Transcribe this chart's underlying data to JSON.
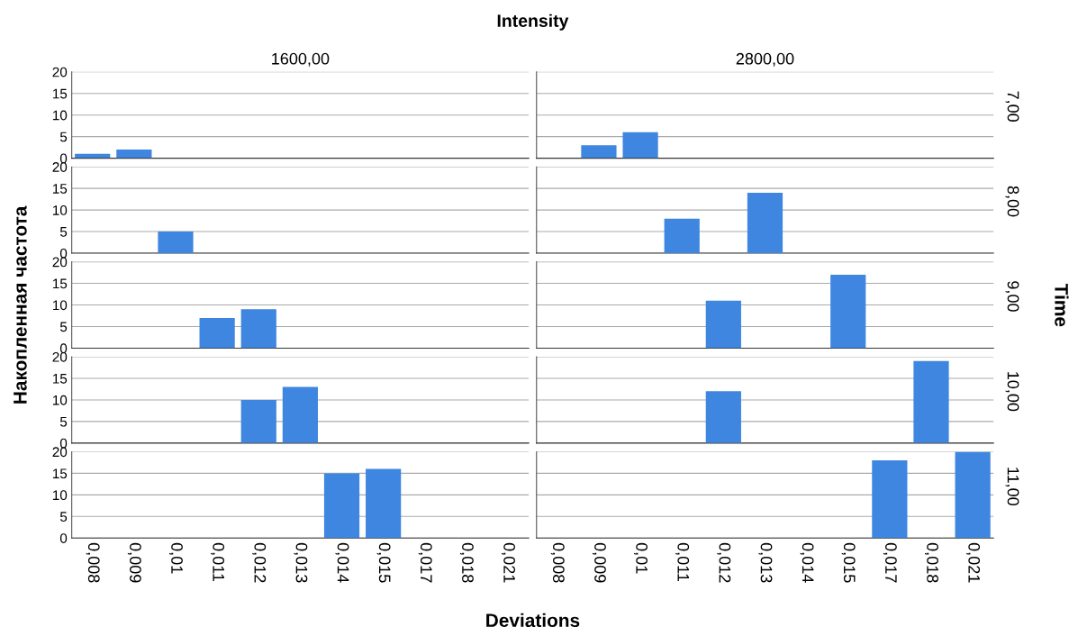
{
  "chart_data": [
    {
      "type": "bar",
      "title": "1600,00",
      "annotations": [
        "Intensity"
      ],
      "ylabel": "Накопленная частота",
      "categories": [
        "0,008",
        "0,009",
        "0,01",
        "0,011",
        "0,012",
        "0,013",
        "0,014",
        "0,015",
        "0,017",
        "0,018",
        "0,021"
      ],
      "values": [
        1,
        2,
        null,
        null,
        null,
        null,
        null,
        null,
        null,
        null,
        null
      ],
      "color": "#3e86e0",
      "ylim": [
        0,
        20
      ],
      "yticks": [
        0,
        5,
        10,
        15,
        20
      ],
      "grid": "y",
      "tick_labels": "y"
    },
    {
      "type": "bar",
      "title": "2800,00",
      "annotations": [
        "7,00"
      ],
      "y2label": "Time",
      "categories": [
        "0,008",
        "0,009",
        "0,01",
        "0,011",
        "0,012",
        "0,013",
        "0,014",
        "0,015",
        "0,017",
        "0,018",
        "0,021"
      ],
      "values": [
        null,
        3,
        6,
        null,
        null,
        null,
        null,
        null,
        null,
        null,
        null
      ],
      "color": "#3e86e0",
      "ylim": [
        0,
        20
      ],
      "yticks": [
        0,
        5,
        10,
        15,
        20
      ],
      "grid": "y",
      "tick_labels": false
    },
    {
      "type": "bar",
      "categories": [
        "0,008",
        "0,009",
        "0,01",
        "0,011",
        "0,012",
        "0,013",
        "0,014",
        "0,015",
        "0,017",
        "0,018",
        "0,021"
      ],
      "values": [
        null,
        null,
        5,
        null,
        null,
        null,
        null,
        null,
        null,
        null,
        null
      ],
      "color": "#3e86e0",
      "ylim": [
        0,
        20
      ],
      "yticks": [
        0,
        5,
        10,
        15,
        20
      ],
      "grid": "y",
      "tick_labels": "y"
    },
    {
      "type": "bar",
      "annotations": [
        "8,00"
      ],
      "categories": [
        "0,008",
        "0,009",
        "0,01",
        "0,011",
        "0,012",
        "0,013",
        "0,014",
        "0,015",
        "0,017",
        "0,018",
        "0,021"
      ],
      "values": [
        null,
        null,
        null,
        8,
        null,
        14,
        null,
        null,
        null,
        null,
        null
      ],
      "color": "#3e86e0",
      "ylim": [
        0,
        20
      ],
      "yticks": [
        0,
        5,
        10,
        15,
        20
      ],
      "grid": "y",
      "tick_labels": false
    },
    {
      "type": "bar",
      "categories": [
        "0,008",
        "0,009",
        "0,01",
        "0,011",
        "0,012",
        "0,013",
        "0,014",
        "0,015",
        "0,017",
        "0,018",
        "0,021"
      ],
      "values": [
        null,
        null,
        null,
        7,
        9,
        null,
        null,
        null,
        null,
        null,
        null
      ],
      "color": "#3e86e0",
      "ylim": [
        0,
        20
      ],
      "yticks": [
        0,
        5,
        10,
        15,
        20
      ],
      "grid": "y",
      "tick_labels": "y"
    },
    {
      "type": "bar",
      "annotations": [
        "9,00"
      ],
      "categories": [
        "0,008",
        "0,009",
        "0,01",
        "0,011",
        "0,012",
        "0,013",
        "0,014",
        "0,015",
        "0,017",
        "0,018",
        "0,021"
      ],
      "values": [
        null,
        null,
        null,
        null,
        11,
        null,
        null,
        17,
        null,
        null,
        null
      ],
      "color": "#3e86e0",
      "ylim": [
        0,
        20
      ],
      "yticks": [
        0,
        5,
        10,
        15,
        20
      ],
      "grid": "y",
      "tick_labels": false
    },
    {
      "type": "bar",
      "categories": [
        "0,008",
        "0,009",
        "0,01",
        "0,011",
        "0,012",
        "0,013",
        "0,014",
        "0,015",
        "0,017",
        "0,018",
        "0,021"
      ],
      "values": [
        null,
        null,
        null,
        null,
        10,
        13,
        null,
        null,
        null,
        null,
        null
      ],
      "color": "#3e86e0",
      "ylim": [
        0,
        20
      ],
      "yticks": [
        0,
        5,
        10,
        15,
        20
      ],
      "grid": "y",
      "tick_labels": "y"
    },
    {
      "type": "bar",
      "annotations": [
        "10,00"
      ],
      "categories": [
        "0,008",
        "0,009",
        "0,01",
        "0,011",
        "0,012",
        "0,013",
        "0,014",
        "0,015",
        "0,017",
        "0,018",
        "0,021"
      ],
      "values": [
        null,
        null,
        null,
        null,
        12,
        null,
        null,
        null,
        null,
        19,
        null
      ],
      "color": "#3e86e0",
      "ylim": [
        0,
        20
      ],
      "yticks": [
        0,
        5,
        10,
        15,
        20
      ],
      "grid": "y",
      "tick_labels": false
    },
    {
      "type": "bar",
      "xlabel": "Deviations",
      "categories": [
        "0,008",
        "0,009",
        "0,01",
        "0,011",
        "0,012",
        "0,013",
        "0,014",
        "0,015",
        "0,017",
        "0,018",
        "0,021"
      ],
      "values": [
        null,
        null,
        null,
        null,
        null,
        null,
        15,
        16,
        null,
        null,
        null
      ],
      "color": "#3e86e0",
      "ylim": [
        0,
        20
      ],
      "yticks": [
        0,
        5,
        10,
        15,
        20
      ],
      "grid": "y"
    },
    {
      "type": "bar",
      "annotations": [
        "11,00"
      ],
      "categories": [
        "0,008",
        "0,009",
        "0,01",
        "0,011",
        "0,012",
        "0,013",
        "0,014",
        "0,015",
        "0,017",
        "0,018",
        "0,021"
      ],
      "values": [
        null,
        null,
        null,
        null,
        null,
        null,
        null,
        null,
        18,
        null,
        20
      ],
      "color": "#3e86e0",
      "ylim": [
        0,
        20
      ],
      "yticks": [
        0,
        5,
        10,
        15,
        20
      ],
      "grid": "y",
      "tick_labels": "x"
    }
  ]
}
